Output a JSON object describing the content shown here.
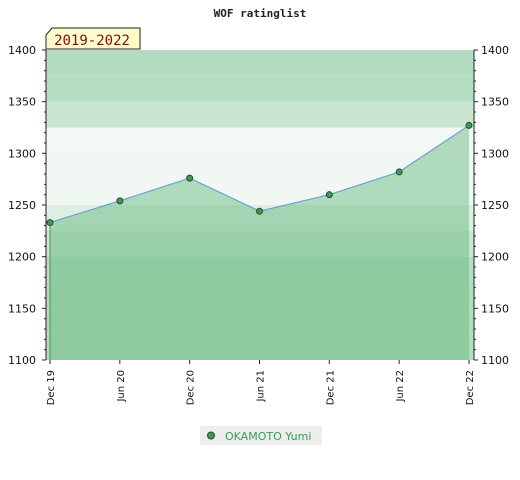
{
  "chart_data": {
    "type": "area",
    "title": "WOF ratinglist",
    "period_label": "2019-2022",
    "x": [
      "Dec 19",
      "Jun 20",
      "Dec 20",
      "Jun 21",
      "Dec 21",
      "Jun 22",
      "Dec 22"
    ],
    "series": [
      {
        "name": "OKAMOTO Yumi",
        "values": [
          1233,
          1254,
          1276,
          1244,
          1260,
          1282,
          1327
        ]
      }
    ],
    "ylim": [
      1100,
      1400
    ],
    "yticks": [
      1100,
      1150,
      1200,
      1250,
      1300,
      1350,
      1400
    ],
    "y_axis_both_sides": true,
    "grid": "horizontal bands",
    "legend_position": "bottom-center",
    "colors": {
      "band_base": "#b2dcbf",
      "band_highlight": "#f2f8f3",
      "fill": "#5fb677",
      "line": "#6aa3d6",
      "marker": "#3f9a5a",
      "legend_text": "#3a9a52",
      "period_bg": "#fffccc"
    }
  }
}
